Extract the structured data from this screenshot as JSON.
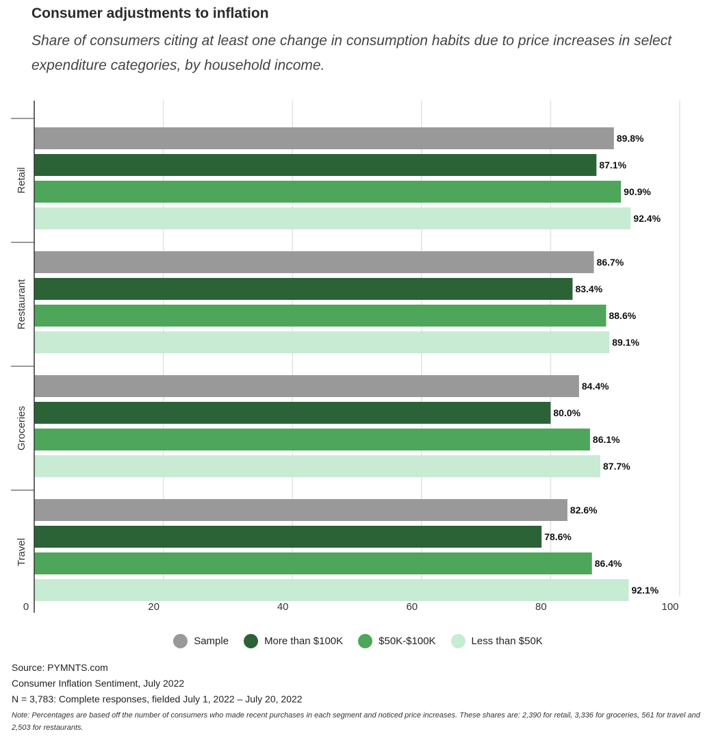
{
  "header": {
    "title": "Consumer adjustments to inflation",
    "subtitle": "Share of consumers citing at least one change in consumption habits due to price increases in select expenditure categories, by household income."
  },
  "chart_data": {
    "type": "bar",
    "orientation": "horizontal",
    "categories": [
      "Retail",
      "Restaurant",
      "Groceries",
      "Travel"
    ],
    "series": [
      {
        "name": "Sample",
        "color": "#999999",
        "values": [
          89.8,
          86.7,
          84.4,
          82.6
        ]
      },
      {
        "name": "More than $100K",
        "color": "#2b6236",
        "values": [
          87.1,
          83.4,
          80.0,
          78.6
        ]
      },
      {
        "name": "$50K-$100K",
        "color": "#4da659",
        "values": [
          90.9,
          88.6,
          86.1,
          86.4
        ]
      },
      {
        "name": "Less than $50K",
        "color": "#c7ebd3",
        "values": [
          92.4,
          89.1,
          87.7,
          92.1
        ]
      }
    ],
    "data_labels": [
      [
        "89.8%",
        "87.1%",
        "90.9%",
        "92.4%"
      ],
      [
        "86.7%",
        "83.4%",
        "88.6%",
        "89.1%"
      ],
      [
        "84.4%",
        "80.0%",
        "86.1%",
        "87.7%"
      ],
      [
        "82.6%",
        "78.6%",
        "86.4%",
        "92.1%"
      ]
    ],
    "xlim": [
      0,
      100
    ],
    "xticks": [
      0,
      20,
      40,
      60,
      80,
      100
    ],
    "xtick_labels": [
      "0",
      "20",
      "40",
      "60",
      "80",
      "100"
    ],
    "grid": true,
    "legend_position": "bottom"
  },
  "legend": {
    "items": [
      {
        "label": "Sample",
        "color": "#999999"
      },
      {
        "label": "More than $100K",
        "color": "#2b6236"
      },
      {
        "label": "$50K-$100K",
        "color": "#4da659"
      },
      {
        "label": "Less than $50K",
        "color": "#c7ebd3"
      }
    ]
  },
  "footer": {
    "source": "Source: PYMNTS.com",
    "report": "Consumer Inflation Sentiment, July 2022",
    "sample": "N = 3,783: Complete responses, fielded July 1, 2022 – July 20, 2022",
    "note": "Note: Percentages are based off the number of consumers who made recent purchases in each segment and noticed price increases. These shares are: 2,390 for retail, 3,336 for groceries, 561 for travel and 2,503 for restaurants."
  }
}
